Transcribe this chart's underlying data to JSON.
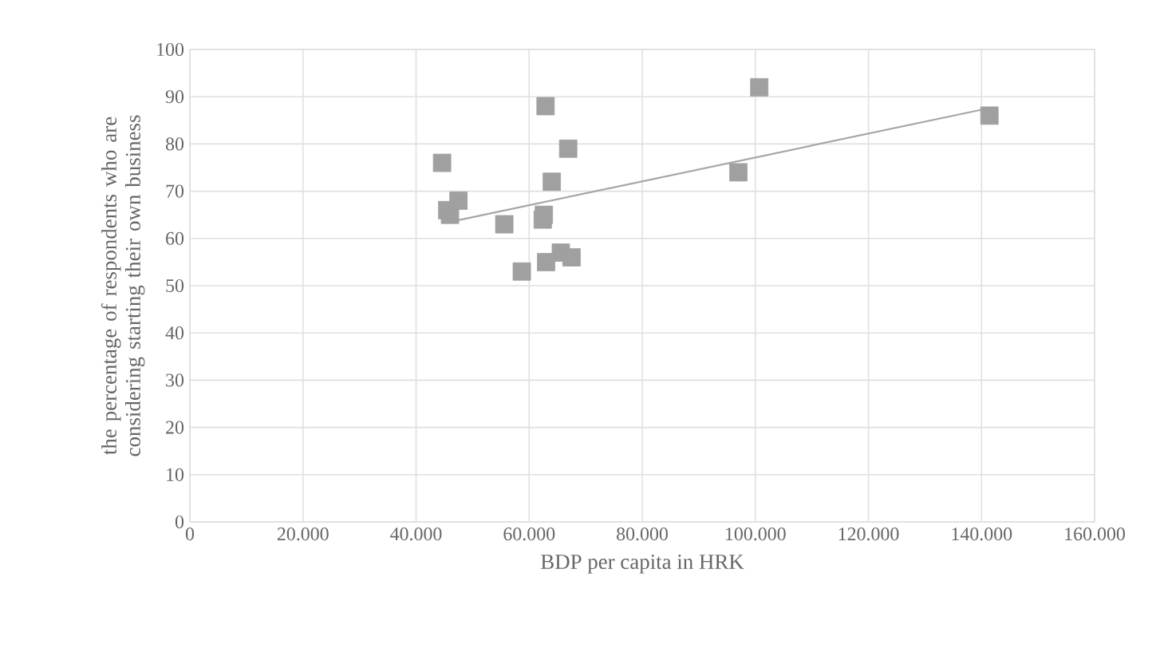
{
  "chart_data": {
    "type": "scatter",
    "xlabel": "BDP per capita in HRK",
    "ylabel": "the percentage of respondents who are considering starting their own business",
    "xlim": [
      0,
      160000
    ],
    "xticks": [
      0,
      {
        "value": 20000,
        "label": "20.000"
      },
      {
        "value": 40000,
        "label": "40.000"
      },
      {
        "value": 60000,
        "label": "60.000"
      },
      {
        "value": 80000,
        "label": "80.000"
      },
      {
        "value": 100000,
        "label": "100.000"
      },
      {
        "value": 120000,
        "label": "120.000"
      },
      {
        "value": 140000,
        "label": "140.000"
      },
      {
        "value": 160000,
        "label": "160.000"
      }
    ],
    "ylim": [
      0,
      100
    ],
    "yticks": [
      0,
      10,
      20,
      30,
      40,
      50,
      60,
      70,
      80,
      90,
      100
    ],
    "grid": true,
    "marker": "square",
    "series": [
      {
        "color": "#a0a0a0",
        "x": [
          44600,
          45500,
          46000,
          47500,
          55600,
          58700,
          62400,
          62600,
          62900,
          63000,
          64000,
          65600,
          66900,
          67500,
          97000,
          100700,
          141400
        ],
        "values": [
          76,
          66,
          65,
          68,
          63,
          53,
          64,
          65,
          88,
          55,
          72,
          57,
          79,
          56,
          74,
          92,
          86
        ]
      },
      {
        "type": "line",
        "marker": "none",
        "color": "#a6a6a6",
        "x": [
          46000,
          141000
        ],
        "values": [
          63.5,
          87.5
        ]
      }
    ]
  }
}
